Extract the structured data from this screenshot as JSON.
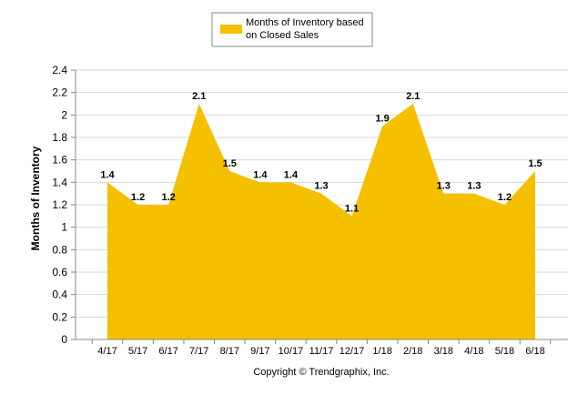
{
  "chart_data": {
    "type": "area",
    "categories": [
      "4/17",
      "5/17",
      "6/17",
      "7/17",
      "8/17",
      "9/17",
      "10/17",
      "11/17",
      "12/17",
      "1/18",
      "2/18",
      "3/18",
      "4/18",
      "5/18",
      "6/18"
    ],
    "series": [
      {
        "name": "Months of Inventory based on Closed Sales",
        "values": [
          1.4,
          1.2,
          1.2,
          2.1,
          1.5,
          1.4,
          1.4,
          1.3,
          1.1,
          1.9,
          2.1,
          1.3,
          1.3,
          1.2,
          1.5
        ],
        "color": "#f5c000"
      }
    ],
    "data_labels": [
      "1.4",
      "1.2",
      "1.2",
      "2.1",
      "1.5",
      "1.4",
      "1.4",
      "1.3",
      "1.1",
      "1.9",
      "2.1",
      "1.3",
      "1.3",
      "1.2",
      "1.5"
    ],
    "y_ticks": [
      "0",
      "0.2",
      "0.4",
      "0.6",
      "0.8",
      "1",
      "1.2",
      "1.4",
      "1.6",
      "1.8",
      "2",
      "2.2",
      "2.4"
    ],
    "ylim": [
      0,
      2.4
    ],
    "ylabel": "Months of Inventory",
    "xlabel": "",
    "grid": true,
    "legend_position": "top-center",
    "legend": {
      "line1": "Months of Inventory based",
      "line2": "on Closed Sales"
    },
    "footer": "Copyright © Trendgraphix, Inc."
  }
}
